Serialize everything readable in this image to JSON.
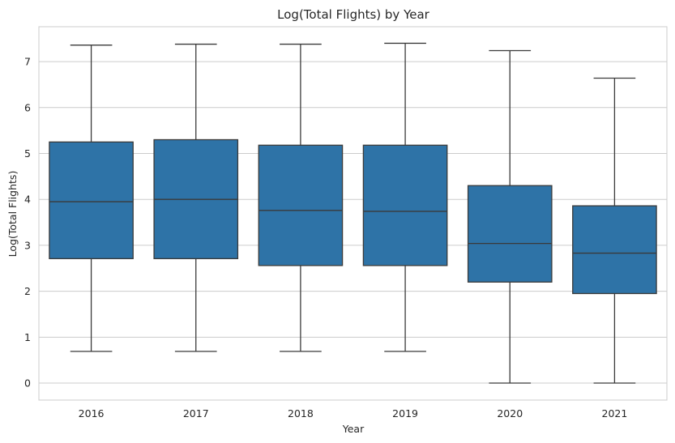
{
  "chart_data": {
    "type": "box",
    "title": "Log(Total Flights) by Year",
    "xlabel": "Year",
    "ylabel": "Log(Total Flights)",
    "ylim": [
      -0.37,
      7.76
    ],
    "yticks": [
      0,
      1,
      2,
      3,
      4,
      5,
      6,
      7
    ],
    "grid": "horizontal",
    "box_color": "#2e73a7",
    "line_color": "#3a3a3a",
    "categories": [
      "2016",
      "2017",
      "2018",
      "2019",
      "2020",
      "2021"
    ],
    "boxes": [
      {
        "min": 0.69,
        "q1": 2.71,
        "median": 3.95,
        "q3": 5.25,
        "max": 7.36
      },
      {
        "min": 0.69,
        "q1": 2.71,
        "median": 4.0,
        "q3": 5.3,
        "max": 7.38
      },
      {
        "min": 0.69,
        "q1": 2.56,
        "median": 3.76,
        "q3": 5.18,
        "max": 7.38
      },
      {
        "min": 0.69,
        "q1": 2.56,
        "median": 3.74,
        "q3": 5.18,
        "max": 7.4
      },
      {
        "min": 0.0,
        "q1": 2.2,
        "median": 3.04,
        "q3": 4.3,
        "max": 7.24
      },
      {
        "min": 0.0,
        "q1": 1.95,
        "median": 2.83,
        "q3": 3.86,
        "max": 6.64
      }
    ]
  }
}
